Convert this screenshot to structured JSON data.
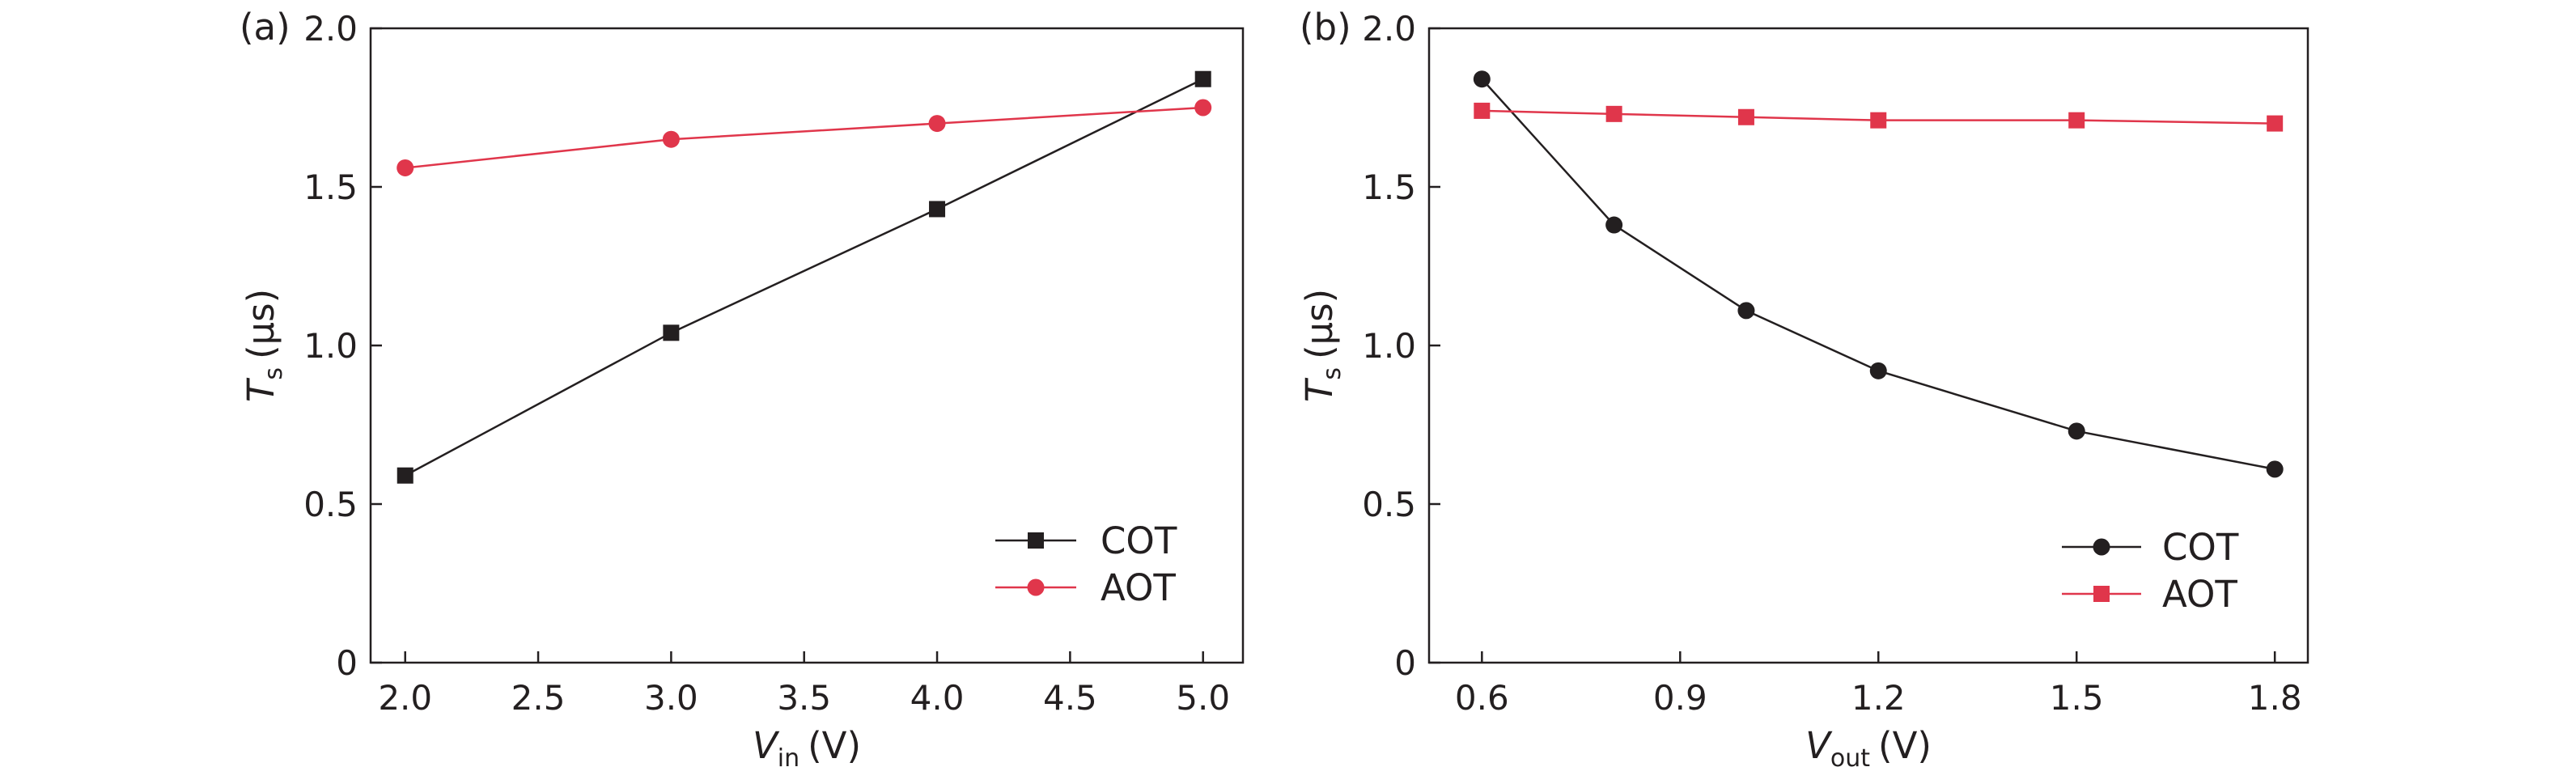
{
  "colors": {
    "cot": "#231f20",
    "aot": "#e0364b",
    "axis": "#231f20"
  },
  "chart_data": [
    {
      "type": "line",
      "panel_label": "(a)",
      "xlabel": {
        "main": "V",
        "sub": "in",
        "unit": "(V)"
      },
      "ylabel": {
        "main": "T",
        "sub": "s",
        "unit": "(μs)"
      },
      "xlim": [
        1.87,
        5.15
      ],
      "ylim": [
        0,
        2.0
      ],
      "xticks": [
        2.0,
        2.5,
        3.0,
        3.5,
        4.0,
        4.5,
        5.0
      ],
      "xtick_labels": [
        "2.0",
        "2.5",
        "3.0",
        "3.5",
        "4.0",
        "4.5",
        "5.0"
      ],
      "yticks": [
        0,
        0.5,
        1.0,
        1.5,
        2.0
      ],
      "ytick_labels": [
        "0",
        "0.5",
        "1.0",
        "1.5",
        "2.0"
      ],
      "legend_position": "bottom-right",
      "series": [
        {
          "name": "COT",
          "marker": "square",
          "color": "#231f20",
          "x": [
            2.0,
            3.0,
            4.0,
            5.0
          ],
          "y": [
            0.59,
            1.04,
            1.43,
            1.84
          ]
        },
        {
          "name": "AOT",
          "marker": "circle",
          "color": "#e0364b",
          "x": [
            2.0,
            3.0,
            4.0,
            5.0
          ],
          "y": [
            1.56,
            1.65,
            1.7,
            1.75
          ]
        }
      ]
    },
    {
      "type": "line",
      "panel_label": "(b)",
      "xlabel": {
        "main": "V",
        "sub": "out",
        "unit": "(V)"
      },
      "ylabel": {
        "main": "T",
        "sub": "s",
        "unit": "(μs)"
      },
      "xlim": [
        0.52,
        1.85
      ],
      "ylim": [
        0,
        2.0
      ],
      "xticks": [
        0.6,
        0.9,
        1.2,
        1.5,
        1.8
      ],
      "xtick_labels": [
        "0.6",
        "0.9",
        "1.2",
        "1.5",
        "1.8"
      ],
      "yticks": [
        0,
        0.5,
        1.0,
        1.5,
        2.0
      ],
      "ytick_labels": [
        "0",
        "0.5",
        "1.0",
        "1.5",
        "2.0"
      ],
      "legend_position": "bottom-right",
      "series": [
        {
          "name": "COT",
          "marker": "circle",
          "color": "#231f20",
          "x": [
            0.6,
            0.8,
            1.0,
            1.2,
            1.5,
            1.8
          ],
          "y": [
            1.84,
            1.38,
            1.11,
            0.92,
            0.73,
            0.61
          ]
        },
        {
          "name": "AOT",
          "marker": "square",
          "color": "#e0364b",
          "x": [
            0.6,
            0.8,
            1.0,
            1.2,
            1.5,
            1.8
          ],
          "y": [
            1.74,
            1.73,
            1.72,
            1.71,
            1.71,
            1.7
          ]
        }
      ]
    }
  ]
}
